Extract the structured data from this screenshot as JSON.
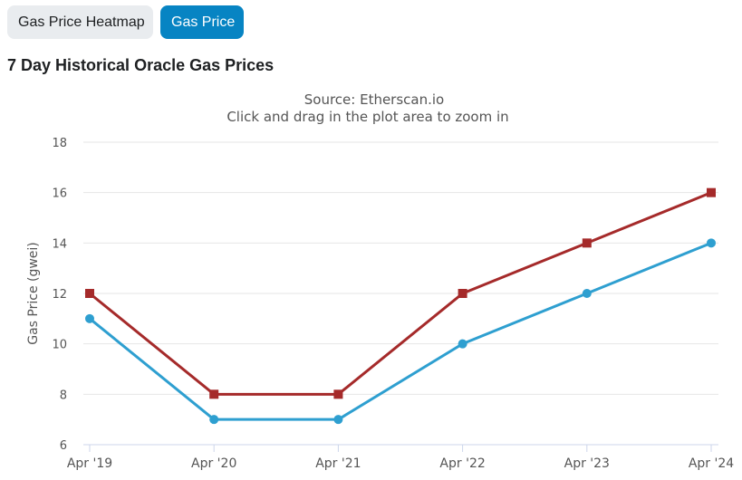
{
  "tabs": [
    {
      "label": "Gas Price Heatmap",
      "active": false
    },
    {
      "label": "Gas Price",
      "active": true
    }
  ],
  "page_title": "7 Day Historical Oracle Gas Prices",
  "chart_data": {
    "type": "line",
    "subtitle_line1": "Source: Etherscan.io",
    "subtitle_line2": "Click and drag in the plot area to zoom in",
    "ylabel": "Gas Price (gwei)",
    "xlabel": "",
    "categories": [
      "Apr '19",
      "Apr '20",
      "Apr '21",
      "Apr '22",
      "Apr '23",
      "Apr '24"
    ],
    "ylim": [
      6,
      18
    ],
    "yticks": [
      6,
      8,
      10,
      12,
      14,
      16,
      18
    ],
    "grid": true,
    "series": [
      {
        "color": "#a52a2a",
        "marker": "square",
        "values": [
          12,
          8,
          8,
          12,
          14,
          16
        ]
      },
      {
        "color": "#2e9fd0",
        "marker": "circle",
        "values": [
          11,
          7,
          7,
          10,
          12,
          14
        ]
      }
    ]
  }
}
